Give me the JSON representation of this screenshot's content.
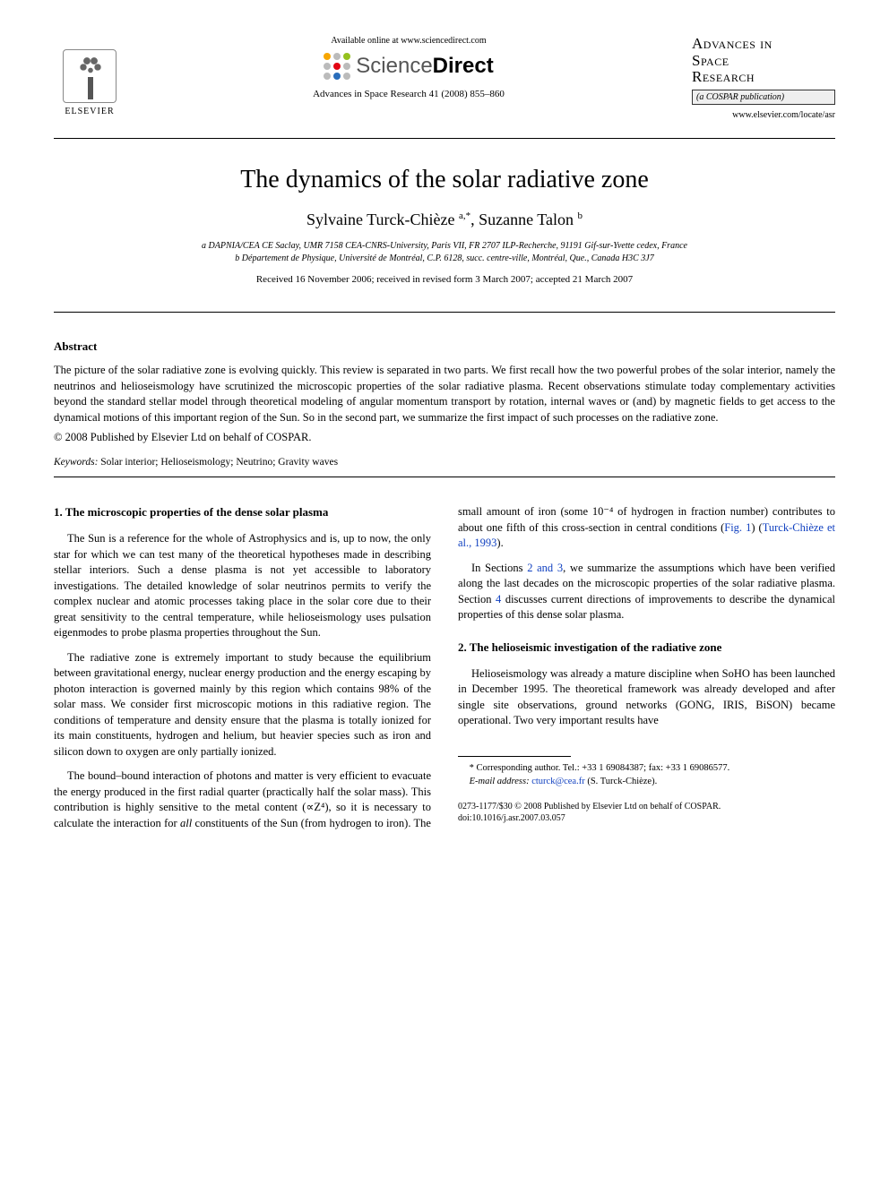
{
  "header": {
    "elsevier_label": "ELSEVIER",
    "available_line": "Available online at www.sciencedirect.com",
    "sd_name_left": "Science",
    "sd_name_right": "Direct",
    "sd_dot_colors": [
      "#f7a600",
      "#bbbbbb",
      "#95c11f",
      "#bbbbbb",
      "#e30613",
      "#bbbbbb",
      "#bbbbbb",
      "#2a6ebb",
      "#bbbbbb"
    ],
    "citation": "Advances in Space Research 41 (2008) 855–860",
    "journal_name_l1": "Advances in",
    "journal_name_l2": "Space",
    "journal_name_l3": "Research",
    "cospar": "(a COSPAR publication)",
    "journal_url": "www.elsevier.com/locate/asr"
  },
  "title": "The dynamics of the solar radiative zone",
  "authors_html": "Sylvaine Turck-Chièze <sup>a,*</sup>, Suzanne Talon <sup>b</sup>",
  "affiliations": [
    "a DAPNIA/CEA CE Saclay, UMR 7158 CEA-CNRS-University, Paris VII, FR 2707 ILP-Recherche, 91191 Gif-sur-Yvette cedex, France",
    "b Département de Physique, Université de Montréal, C.P. 6128, succ. centre-ville, Montréal, Que., Canada H3C 3J7"
  ],
  "dates": "Received 16 November 2006; received in revised form 3 March 2007; accepted 21 March 2007",
  "abstract_label": "Abstract",
  "abstract": "The picture of the solar radiative zone is evolving quickly. This review is separated in two parts. We first recall how the two powerful probes of the solar interior, namely the neutrinos and helioseismology have scrutinized the microscopic properties of the solar radiative plasma. Recent observations stimulate today complementary activities beyond the standard stellar model through theoretical modeling of angular momentum transport by rotation, internal waves or (and) by magnetic fields to get access to the dynamical motions of this important region of the Sun. So in the second part, we summarize the first impact of such processes on the radiative zone.",
  "copyright": "© 2008 Published by Elsevier Ltd on behalf of COSPAR.",
  "keywords_label": "Keywords:",
  "keywords": "Solar interior; Helioseismology; Neutrino; Gravity waves",
  "sections": {
    "s1": {
      "head": "1. The microscopic properties of the dense solar plasma",
      "p1": "The Sun is a reference for the whole of Astrophysics and is, up to now, the only star for which we can test many of the theoretical hypotheses made in describing stellar interiors. Such a dense plasma is not yet accessible to laboratory investigations. The detailed knowledge of solar neutrinos permits to verify the complex nuclear and atomic processes taking place in the solar core due to their great sensitivity to the central temperature, while helioseismology uses pulsation eigenmodes to probe plasma properties throughout the Sun.",
      "p2": "The radiative zone is extremely important to study because the equilibrium between gravitational energy, nuclear energy production and the energy escaping by photon interaction is governed mainly by this region which contains 98% of the solar mass. We consider first microscopic motions in this radiative region. The conditions of temperature and density ensure that the plasma is totally ionized for its main constituents, hydrogen and helium, but heavier species such as iron and silicon down to oxygen are only partially ionized.",
      "p3a": "The bound–bound interaction of photons and matter is very efficient to evacuate the energy produced in the first radial quarter (practically half the solar mass). This contribution is highly sensitive to the metal content (∝Z⁴), so it is necessary to calculate the interaction for ",
      "p3_em": "all",
      "p3b": " constituents of the Sun (from hydrogen to iron). The small amount of iron (some 10⁻⁴ of hydrogen in fraction number) contributes to about one fifth of this cross-section in central conditions (",
      "p3_fig": "Fig. 1",
      "p3c": ") (",
      "p3_ref": "Turck-Chièze et al., 1993",
      "p3d": ").",
      "p4a": "In Sections ",
      "p4_link": "2 and 3",
      "p4b": ", we summarize the assumptions which have been verified along the last decades on the microscopic properties of the solar radiative plasma. Section ",
      "p4_link2": "4",
      "p4c": " discusses current directions of improvements to describe the dynamical properties of this dense solar plasma."
    },
    "s2": {
      "head": "2. The helioseismic investigation of the radiative zone",
      "p1": "Helioseismology was already a mature discipline when SoHO has been launched in December 1995. The theoretical framework was already developed and after single site observations, ground networks (GONG, IRIS, BiSON) became operational. Two very important results have"
    }
  },
  "footnotes": {
    "corr": "* Corresponding author. Tel.: +33 1 69084387; fax: +33 1 69086577.",
    "email_label": "E-mail address:",
    "email": "cturck@cea.fr",
    "email_who": "(S. Turck-Chièze)."
  },
  "bottom": {
    "issn": "0273-1177/$30 © 2008 Published by Elsevier Ltd on behalf of COSPAR.",
    "doi": "doi:10.1016/j.asr.2007.03.057"
  },
  "colors": {
    "link": "#1040c0",
    "text": "#000000",
    "background": "#ffffff"
  }
}
